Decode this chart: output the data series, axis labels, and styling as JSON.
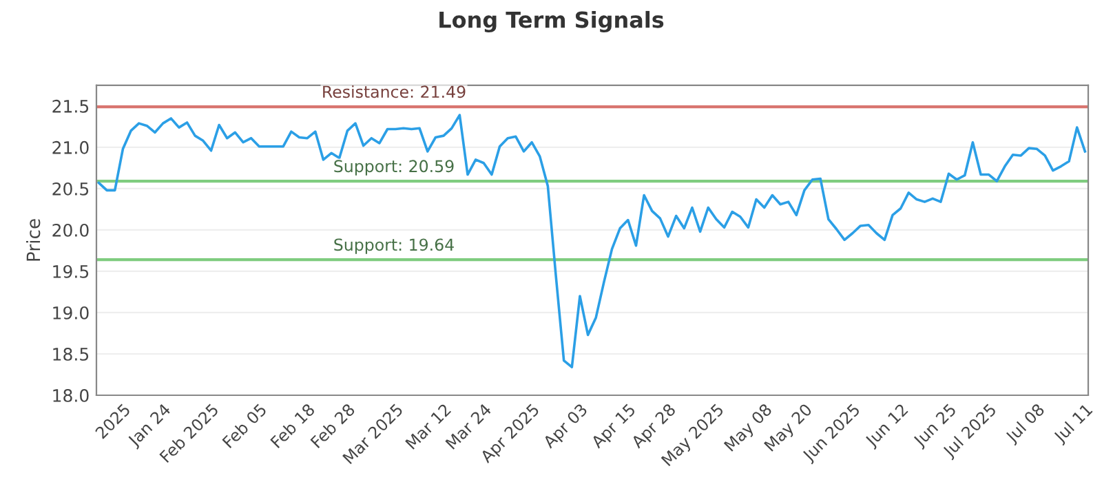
{
  "chart_data": {
    "type": "line",
    "title": "Long Term Signals",
    "ylabel": "Price",
    "categories": [
      null,
      null,
      null,
      "2025",
      null,
      null,
      null,
      null,
      "Jan 24",
      null,
      null,
      null,
      null,
      null,
      "Feb 2025",
      null,
      null,
      null,
      null,
      null,
      "Feb 05",
      null,
      null,
      null,
      null,
      null,
      "Feb 18",
      null,
      null,
      null,
      null,
      "Feb 28",
      null,
      null,
      null,
      null,
      null,
      "Mar 2025",
      null,
      null,
      null,
      null,
      null,
      "Mar 12",
      null,
      null,
      null,
      null,
      "Mar 24",
      null,
      null,
      null,
      null,
      null,
      "Apr 2025",
      null,
      null,
      null,
      null,
      null,
      "Apr 03",
      null,
      null,
      null,
      null,
      null,
      "Apr 15",
      null,
      null,
      null,
      null,
      "Apr 28",
      null,
      null,
      null,
      null,
      null,
      "May 2025",
      null,
      null,
      null,
      null,
      null,
      "May 08",
      null,
      null,
      null,
      null,
      "May 20",
      null,
      null,
      null,
      null,
      null,
      "Jun 2025",
      null,
      null,
      null,
      null,
      null,
      "Jun 12",
      null,
      null,
      null,
      null,
      null,
      "Jun 25",
      null,
      null,
      null,
      null,
      "Jul 2025",
      null,
      null,
      null,
      null,
      null,
      "Jul 08",
      null,
      null,
      null,
      null,
      null,
      "Jul 11"
    ],
    "series": [
      {
        "color": "#2b9fe6",
        "values": [
          20.57,
          20.48,
          20.48,
          20.98,
          21.2,
          21.29,
          21.26,
          21.18,
          21.29,
          21.35,
          21.24,
          21.3,
          21.14,
          21.08,
          20.96,
          21.27,
          21.11,
          21.18,
          21.06,
          21.11,
          21.01,
          21.01,
          21.01,
          21.01,
          21.19,
          21.12,
          21.11,
          21.19,
          20.85,
          20.93,
          20.87,
          21.2,
          21.29,
          21.02,
          21.11,
          21.05,
          21.22,
          21.22,
          21.23,
          21.22,
          21.23,
          20.95,
          21.12,
          21.14,
          21.23,
          21.39,
          20.67,
          20.85,
          20.81,
          20.67,
          21.01,
          21.11,
          21.13,
          20.95,
          21.06,
          20.89,
          20.53,
          19.45,
          18.42,
          18.34,
          19.2,
          18.73,
          18.94,
          19.37,
          19.77,
          20.02,
          20.12,
          19.81,
          20.42,
          20.23,
          20.14,
          19.92,
          20.17,
          20.02,
          20.27,
          19.98,
          20.27,
          20.13,
          20.03,
          20.22,
          20.16,
          20.03,
          20.37,
          20.27,
          20.42,
          20.31,
          20.34,
          20.18,
          20.48,
          20.61,
          20.62,
          20.13,
          20.01,
          19.88,
          19.96,
          20.05,
          20.06,
          19.96,
          19.88,
          20.18,
          20.26,
          20.45,
          20.37,
          20.34,
          20.38,
          20.34,
          20.68,
          20.61,
          20.66,
          21.06,
          20.67,
          20.67,
          20.59,
          20.77,
          20.91,
          20.9,
          20.99,
          20.98,
          20.9,
          20.72,
          20.77,
          20.83,
          21.24,
          20.95
        ]
      }
    ],
    "ylim": [
      18.0,
      21.75
    ],
    "yticks": [
      {
        "value": 18.0,
        "label": "18.0"
      },
      {
        "value": 18.5,
        "label": "18.5"
      },
      {
        "value": 19.0,
        "label": "19.0"
      },
      {
        "value": 19.5,
        "label": "19.5"
      },
      {
        "value": 20.0,
        "label": "20.0"
      },
      {
        "value": 20.5,
        "label": "20.5"
      },
      {
        "value": 21.0,
        "label": "21.0"
      },
      {
        "value": 21.5,
        "label": "21.5"
      }
    ],
    "ref_lines": [
      {
        "axis": "y",
        "value": 21.49,
        "label": "Resistance: 21.49",
        "color": "#d9756f"
      },
      {
        "axis": "y",
        "value": 20.59,
        "label": "Support: 20.59",
        "color": "#7fcc7f"
      },
      {
        "axis": "y",
        "value": 19.64,
        "label": "Support: 19.64",
        "color": "#7fcc7f"
      }
    ],
    "grid": "y",
    "marker": "none",
    "line_style": "solid",
    "legend": false
  }
}
